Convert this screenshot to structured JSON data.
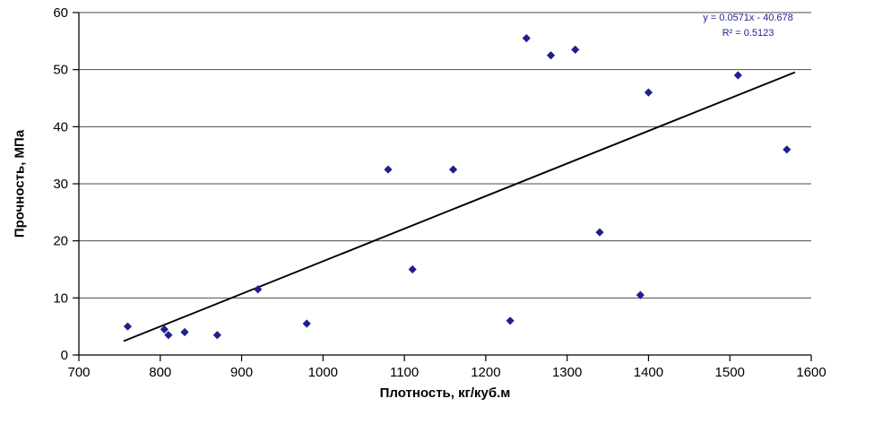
{
  "chart_data": {
    "type": "scatter",
    "title": "",
    "xlabel": "Плотность, кг/куб.м",
    "ylabel": "Прочность, МПа",
    "xlim": [
      700,
      1600
    ],
    "ylim": [
      0,
      60
    ],
    "xticks": [
      700,
      800,
      900,
      1000,
      1100,
      1200,
      1300,
      1400,
      1500,
      1600
    ],
    "yticks": [
      0,
      10,
      20,
      30,
      40,
      50,
      60
    ],
    "grid": true,
    "points": [
      [
        760,
        5
      ],
      [
        805,
        4.5
      ],
      [
        810,
        3.5
      ],
      [
        830,
        4
      ],
      [
        870,
        3.5
      ],
      [
        920,
        11.5
      ],
      [
        980,
        5.5
      ],
      [
        1080,
        32.5
      ],
      [
        1110,
        15
      ],
      [
        1160,
        32.5
      ],
      [
        1230,
        6
      ],
      [
        1250,
        55.5
      ],
      [
        1280,
        52.5
      ],
      [
        1310,
        53.5
      ],
      [
        1340,
        21.5
      ],
      [
        1390,
        10.5
      ],
      [
        1400,
        46
      ],
      [
        1510,
        49
      ],
      [
        1570,
        36
      ]
    ],
    "trendline": {
      "slope": 0.0571,
      "intercept": -40.678,
      "x_start": 755,
      "x_end": 1580
    },
    "annotation": {
      "line1": "y = 0.0571x - 40.678",
      "line2": "R² = 0.5123"
    },
    "marker_color": "#1F1F8F",
    "line_color": "#000000",
    "grid_color": "#4d4d4d",
    "axis_color": "#000000",
    "annotation_color": "#1F1F8F"
  }
}
